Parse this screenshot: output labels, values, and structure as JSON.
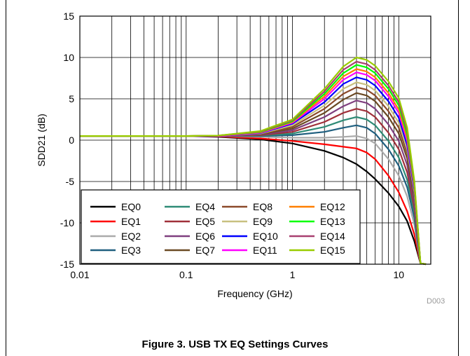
{
  "figure_caption": "Figure 3. USB TX EQ Settings Curves",
  "figure_id": "D003",
  "chart_data": {
    "type": "line",
    "title": "",
    "xlabel": "Frequency (GHz)",
    "ylabel": "SDD21 (dB)",
    "x_scale": "log",
    "xlim": [
      0.01,
      20
    ],
    "ylim": [
      -15,
      15
    ],
    "x_ticks": [
      {
        "value": 0.01,
        "label": "0.01"
      },
      {
        "value": 0.1,
        "label": "0.1"
      },
      {
        "value": 1,
        "label": "1"
      },
      {
        "value": 10,
        "label": "10"
      }
    ],
    "y_ticks": [
      {
        "value": 15,
        "label": "15"
      },
      {
        "value": 10,
        "label": "10"
      },
      {
        "value": 5,
        "label": "5"
      },
      {
        "value": 0,
        "label": "0"
      },
      {
        "value": -5,
        "label": "-5"
      },
      {
        "value": -10,
        "label": "-10"
      },
      {
        "value": -15,
        "label": "-15"
      }
    ],
    "grid": true,
    "legend_position": "bottom-left",
    "x": [
      0.01,
      0.1,
      0.2,
      0.5,
      1,
      2,
      3,
      4,
      5,
      6,
      8,
      10,
      12,
      14,
      16,
      18
    ],
    "series": [
      {
        "name": "EQ0",
        "color": "#000000",
        "values": [
          0.5,
          0.5,
          0.4,
          0.1,
          -0.4,
          -1.3,
          -2.1,
          -2.9,
          -3.8,
          -4.7,
          -6.4,
          -8.0,
          -9.8,
          -12.2,
          -14.9,
          -15.0
        ]
      },
      {
        "name": "EQ1",
        "color": "#ff0000",
        "values": [
          0.5,
          0.5,
          0.45,
          0.2,
          -0.1,
          -0.5,
          -0.8,
          -1.0,
          -1.5,
          -2.3,
          -4.3,
          -6.3,
          -8.6,
          -11.4,
          -14.9,
          -15.0
        ]
      },
      {
        "name": "EQ2",
        "color": "#aaaaaa",
        "values": [
          0.5,
          0.5,
          0.5,
          0.4,
          0.3,
          0.3,
          0.4,
          0.5,
          0.2,
          -0.4,
          -2.3,
          -4.3,
          -6.8,
          -10.2,
          -14.9,
          -15.0
        ]
      },
      {
        "name": "EQ3",
        "color": "#1f5f7f",
        "values": [
          0.5,
          0.5,
          0.5,
          0.5,
          0.6,
          1.0,
          1.5,
          1.8,
          1.5,
          0.8,
          -1.1,
          -3.1,
          -5.7,
          -9.4,
          -14.9,
          -15.0
        ]
      },
      {
        "name": "EQ4",
        "color": "#2e8b76",
        "values": [
          0.5,
          0.5,
          0.5,
          0.55,
          0.8,
          1.6,
          2.4,
          2.8,
          2.5,
          1.8,
          -0.1,
          -2.1,
          -4.8,
          -8.8,
          -14.9,
          -15.0
        ]
      },
      {
        "name": "EQ5",
        "color": "#a0303a",
        "values": [
          0.5,
          0.5,
          0.5,
          0.6,
          1.0,
          2.2,
          3.3,
          3.8,
          3.5,
          2.8,
          0.9,
          -1.1,
          -3.9,
          -8.2,
          -14.9,
          -15.0
        ]
      },
      {
        "name": "EQ6",
        "color": "#7f3f7f",
        "values": [
          0.5,
          0.5,
          0.5,
          0.65,
          1.2,
          2.8,
          4.1,
          4.8,
          4.5,
          3.8,
          1.9,
          -0.1,
          -3.0,
          -7.6,
          -14.9,
          -15.0
        ]
      },
      {
        "name": "EQ7",
        "color": "#6b4a24",
        "values": [
          0.5,
          0.5,
          0.5,
          0.7,
          1.4,
          3.3,
          4.9,
          5.7,
          5.4,
          4.7,
          2.8,
          0.8,
          -2.2,
          -7.0,
          -14.9,
          -15.0
        ]
      },
      {
        "name": "EQ8",
        "color": "#8b4a2a",
        "values": [
          0.5,
          0.5,
          0.5,
          0.75,
          1.6,
          3.8,
          5.6,
          6.4,
          6.1,
          5.4,
          3.5,
          1.5,
          -1.6,
          -6.6,
          -14.9,
          -15.0
        ]
      },
      {
        "name": "EQ9",
        "color": "#c8c080",
        "values": [
          0.5,
          0.5,
          0.5,
          0.8,
          1.8,
          4.2,
          6.2,
          7.0,
          6.7,
          6.0,
          4.1,
          2.1,
          -1.1,
          -6.3,
          -14.9,
          -15.0
        ]
      },
      {
        "name": "EQ10",
        "color": "#0000ff",
        "values": [
          0.5,
          0.5,
          0.5,
          0.85,
          2.0,
          4.6,
          6.8,
          7.6,
          7.3,
          6.6,
          4.7,
          2.7,
          -0.6,
          -6.0,
          -14.9,
          -15.0
        ]
      },
      {
        "name": "EQ11",
        "color": "#ff00ff",
        "values": [
          0.5,
          0.5,
          0.5,
          0.9,
          2.1,
          5.0,
          7.3,
          8.2,
          7.9,
          7.2,
          5.3,
          3.3,
          -0.1,
          -5.7,
          -14.9,
          -15.0
        ]
      },
      {
        "name": "EQ12",
        "color": "#ff7f00",
        "values": [
          0.5,
          0.5,
          0.55,
          0.95,
          2.2,
          5.3,
          7.7,
          8.6,
          8.3,
          7.6,
          5.7,
          3.7,
          0.3,
          -5.5,
          -14.9,
          -15.0
        ]
      },
      {
        "name": "EQ13",
        "color": "#00ff00",
        "values": [
          0.5,
          0.5,
          0.55,
          1.0,
          2.3,
          5.6,
          8.1,
          9.1,
          8.8,
          8.1,
          6.2,
          4.2,
          0.7,
          -5.3,
          -14.9,
          -15.0
        ]
      },
      {
        "name": "EQ14",
        "color": "#a84070",
        "values": [
          0.5,
          0.5,
          0.55,
          1.05,
          2.4,
          5.9,
          8.5,
          9.5,
          9.2,
          8.5,
          6.6,
          4.6,
          1.1,
          -5.1,
          -14.9,
          -15.0
        ]
      },
      {
        "name": "EQ15",
        "color": "#99cc00",
        "values": [
          0.5,
          0.5,
          0.55,
          1.1,
          2.5,
          6.2,
          8.9,
          10.0,
          9.7,
          9.0,
          7.1,
          5.1,
          1.5,
          -4.9,
          -14.9,
          -15.0
        ]
      }
    ]
  }
}
